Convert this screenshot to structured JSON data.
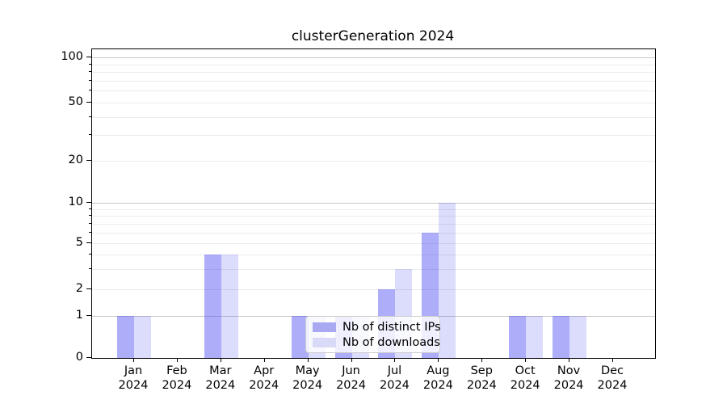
{
  "chart_data": {
    "type": "bar",
    "title": "clusterGeneration 2024",
    "categories": [
      "Jan",
      "Feb",
      "Mar",
      "Apr",
      "May",
      "Jun",
      "Jul",
      "Aug",
      "Sep",
      "Oct",
      "Nov",
      "Dec"
    ],
    "x_tick_year": "2024",
    "series": [
      {
        "name": "Nb of distinct IPs",
        "color": "rgba(60,60,240,0.42)",
        "legend_color": "#a9a9f2",
        "values": [
          1,
          0,
          4,
          0,
          1,
          1,
          2,
          6,
          0,
          1,
          1,
          0
        ]
      },
      {
        "name": "Nb of downloads",
        "color": "rgba(60,60,240,0.18)",
        "legend_color": "#d9d9f8",
        "values": [
          1,
          0,
          4,
          0,
          1,
          1,
          3,
          10,
          0,
          1,
          1,
          0
        ]
      }
    ],
    "yticks": [
      0,
      1,
      2,
      5,
      10,
      20,
      50,
      100
    ],
    "ytick_labels": [
      "0",
      "1",
      "2",
      "5",
      "10",
      "20",
      "50",
      "100"
    ],
    "yscale": "symlog",
    "ylim": [
      0,
      113
    ],
    "grid": "horizontal, major and minor, log minors",
    "legend_position": "lower center"
  }
}
